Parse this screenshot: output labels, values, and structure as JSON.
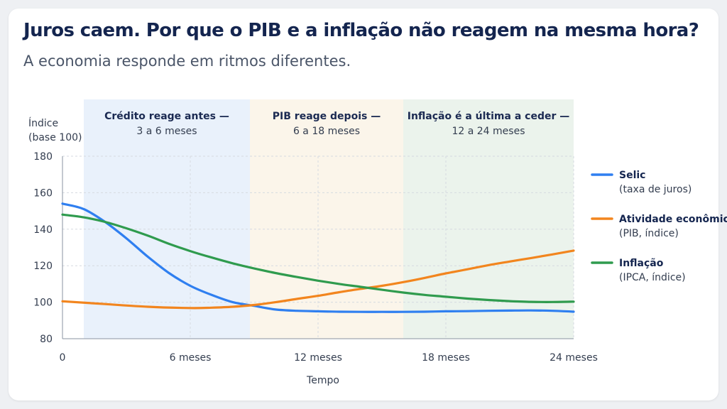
{
  "title": "Juros caem. Por que o PIB e a inflação não reagem na mesma hora?",
  "subtitle": "A economia responde em ritmos diferentes.",
  "chart_data": {
    "type": "line",
    "ylabel_line1": "Índice",
    "ylabel_line2": "(base 100)",
    "xlabel": "Tempo",
    "ylim": [
      80,
      180
    ],
    "yticks": [
      "80",
      "100",
      "120",
      "140",
      "160",
      "180"
    ],
    "xlim": [
      0,
      24
    ],
    "xticks": [
      {
        "value": 0,
        "label": "0"
      },
      {
        "value": 6,
        "label": "6 meses"
      },
      {
        "value": 12,
        "label": "12 meses"
      },
      {
        "value": 18,
        "label": "18 meses"
      },
      {
        "value": 24,
        "label": "24 meses"
      }
    ],
    "grid": true,
    "legend_position": "right",
    "bands": [
      {
        "start": 1,
        "end": 8.8,
        "color": "#e9f1fb",
        "title": "Crédito reage antes —",
        "range": "3 a 6 meses"
      },
      {
        "start": 8.8,
        "end": 16,
        "color": "#fbf5ea",
        "title": "PIB reage depois —",
        "range": "6 a 18 meses"
      },
      {
        "start": 16,
        "end": 24,
        "color": "#ebf3ec",
        "title": "Inflação é a última a ceder —",
        "range": "12 a 24 meses"
      }
    ],
    "series": [
      {
        "name": "Selic",
        "detail": "(taxa de juros)",
        "color": "#2f7ff0",
        "x": [
          0,
          1,
          2,
          3,
          4,
          5,
          6,
          7,
          8,
          9,
          10,
          11,
          12,
          13,
          14,
          15,
          16,
          17,
          18,
          19,
          20,
          21,
          22,
          23,
          24
        ],
        "y": [
          154,
          151,
          144,
          135,
          125,
          116,
          109,
          104,
          100,
          98,
          96,
          95.3,
          95,
          94.8,
          94.7,
          94.7,
          94.7,
          94.8,
          95,
          95.1,
          95.3,
          95.4,
          95.5,
          95.3,
          94.8
        ]
      },
      {
        "name": "Atividade econômica",
        "detail": "(PIB, índice)",
        "color": "#f2851e",
        "x": [
          0,
          2,
          4,
          6,
          7,
          8,
          9,
          10,
          11,
          12,
          13,
          14,
          15,
          16,
          17,
          18,
          19,
          20,
          21,
          22,
          23,
          24
        ],
        "y": [
          100.5,
          99,
          97.5,
          96.8,
          97,
          97.5,
          98.5,
          100,
          101.8,
          103.5,
          105.5,
          107.3,
          109,
          111,
          113.3,
          115.8,
          118,
          120.3,
          122.3,
          124.2,
          126.2,
          128.3
        ]
      },
      {
        "name": "Inflação",
        "detail": "(IPCA, índice)",
        "color": "#2f9b4e",
        "x": [
          0,
          1,
          2,
          3,
          4,
          5,
          6,
          7,
          8,
          9,
          10,
          11,
          12,
          13,
          14,
          15,
          16,
          17,
          18,
          19,
          20,
          21,
          22,
          23,
          24
        ],
        "y": [
          148,
          146.5,
          144,
          140.5,
          136.5,
          132,
          128,
          124.5,
          121.3,
          118.5,
          116,
          113.8,
          111.8,
          110,
          108.4,
          106.8,
          105.3,
          104,
          103,
          102,
          101.2,
          100.6,
          100.2,
          100.1,
          100.3
        ]
      }
    ]
  }
}
